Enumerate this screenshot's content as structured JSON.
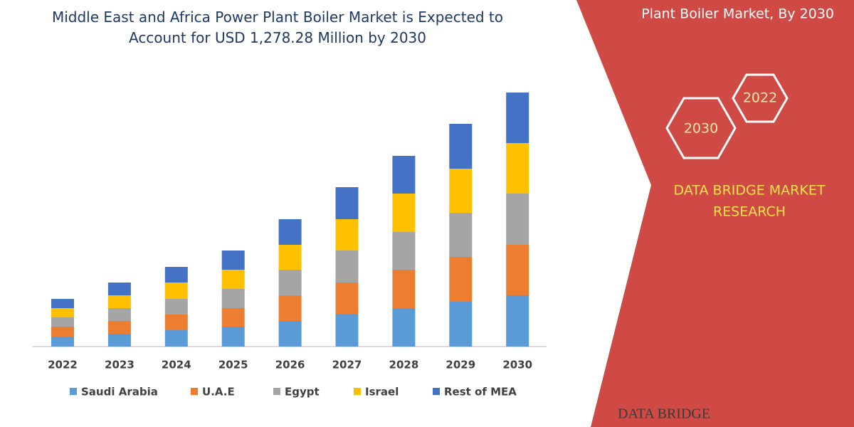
{
  "chart_data": {
    "type": "stacked-bar",
    "title": "Middle East and Africa Power Plant Boiler Market is Expected to Account for USD 1,278.28 Million by 2030",
    "categories": [
      "2022",
      "2023",
      "2024",
      "2025",
      "2026",
      "2027",
      "2028",
      "2029",
      "2030"
    ],
    "series": [
      {
        "name": "Saudi Arabia",
        "color": "#5b9bd5",
        "values": [
          14,
          18,
          23,
          28,
          36,
          46,
          54,
          63,
          72
        ]
      },
      {
        "name": "U.A.E",
        "color": "#ed7d31",
        "values": [
          14,
          18,
          22,
          26,
          36,
          44,
          54,
          63,
          71
        ]
      },
      {
        "name": "Egypt",
        "color": "#a5a5a5",
        "values": [
          13,
          18,
          22,
          27,
          36,
          45,
          53,
          62,
          72
        ]
      },
      {
        "name": "Israel",
        "color": "#ffc000",
        "values": [
          13,
          18,
          23,
          27,
          35,
          44,
          54,
          62,
          71
        ]
      },
      {
        "name": "Rest of MEA",
        "color": "#4472c4",
        "values": [
          13,
          18,
          22,
          27,
          36,
          45,
          53,
          63,
          71
        ]
      }
    ]
  },
  "panel": {
    "heading": "Plant Boiler Market, By 2030",
    "hex_front": "2030",
    "hex_back": "2022",
    "brand": [
      "DATA BRIDGE MARKET",
      "RESEARCH"
    ],
    "logo": "DATA BRIDGE"
  }
}
